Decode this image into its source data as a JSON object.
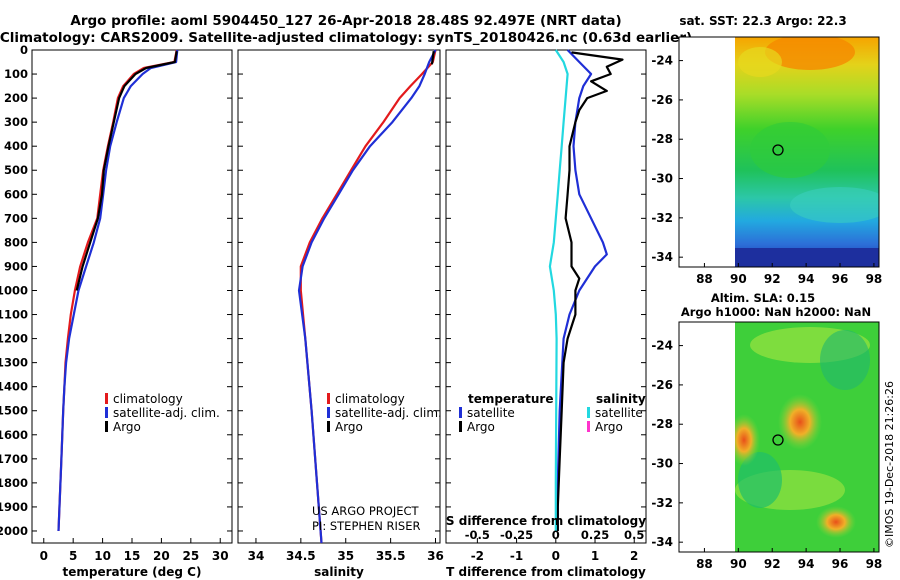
{
  "title": {
    "line1": "Argo profile: aoml 5904450_127 26-Apr-2018 28.48S 92.497E (NRT data)",
    "line2": "Climatology: CARS2009. Satellite-adjusted climatology: synTS_20180426.nc (0.63d earlier)"
  },
  "depth_ticks": [
    "0",
    "100",
    "200",
    "300",
    "400",
    "500",
    "600",
    "700",
    "800",
    "900",
    "1000",
    "1100",
    "1200",
    "1300",
    "1400",
    "1500",
    "1600",
    "1700",
    "1800",
    "1900",
    "2000"
  ],
  "colors": {
    "climatology": "#e31a1c",
    "satellite": "#1f2fd6",
    "argo": "#000000",
    "sal_satellite": "#22d8e0",
    "sal_argo": "#ff33cc"
  },
  "chart_data": [
    {
      "type": "line",
      "id": "temperature",
      "xlabel": "temperature (deg C)",
      "ylabel": "",
      "xlim": [
        -2,
        32
      ],
      "ylim": [
        2050,
        0
      ],
      "xticks": [
        0,
        5,
        10,
        15,
        20,
        25,
        30
      ],
      "legend": [
        "climatology",
        "satellite-adj. clim.",
        "Argo"
      ],
      "series": [
        {
          "name": "climatology",
          "color": "#e31a1c",
          "depth": [
            0,
            50,
            75,
            100,
            150,
            200,
            300,
            400,
            500,
            600,
            700,
            800,
            900,
            1000,
            1100,
            1200,
            1300,
            1400,
            1500,
            1700,
            2000
          ],
          "values": [
            22.6,
            22.2,
            17,
            15.3,
            13.5,
            12.6,
            11.8,
            10.9,
            10.1,
            9.6,
            9.1,
            7.5,
            6.2,
            5.3,
            4.6,
            4.1,
            3.7,
            3.5,
            3.3,
            3.0,
            2.5
          ]
        },
        {
          "name": "satellite-adj. clim.",
          "color": "#1f2fd6",
          "depth": [
            0,
            50,
            75,
            100,
            150,
            200,
            300,
            400,
            500,
            600,
            700,
            800,
            900,
            1000,
            1100,
            1200,
            1300,
            1400,
            1500,
            1700,
            2000
          ],
          "values": [
            22.7,
            22.5,
            18.2,
            16.8,
            14.8,
            13.6,
            12.4,
            11.3,
            10.6,
            10.1,
            9.6,
            8.5,
            7.2,
            5.9,
            5.1,
            4.3,
            3.8,
            3.5,
            3.3,
            3.0,
            2.5
          ]
        },
        {
          "name": "Argo",
          "color": "#000000",
          "depth": [
            5,
            50,
            75,
            100,
            150,
            200,
            300,
            400,
            500,
            600,
            700,
            800,
            900,
            1000
          ],
          "values": [
            22.6,
            22.3,
            17.4,
            15.6,
            13.7,
            12.8,
            11.9,
            11.0,
            10.2,
            9.9,
            9.2,
            7.9,
            6.6,
            5.6
          ]
        }
      ]
    },
    {
      "type": "line",
      "id": "salinity",
      "xlabel": "salinity",
      "xlim": [
        33.8,
        36.05
      ],
      "ylim": [
        2050,
        0
      ],
      "xticks": [
        34,
        34.5,
        35,
        35.5,
        36
      ],
      "xtick_labels": [
        "34",
        "34.5",
        "35",
        "35.5",
        "36"
      ],
      "legend": [
        "climatology",
        "satellite-adj. clim.",
        "Argo"
      ],
      "annotation": [
        "US ARGO PROJECT",
        "PI: STEPHEN RISER"
      ],
      "series": [
        {
          "name": "climatology",
          "color": "#e31a1c",
          "depth": [
            0,
            50,
            100,
            150,
            200,
            300,
            400,
            500,
            600,
            700,
            800,
            900,
            1000,
            1200,
            1500,
            1800,
            2000,
            2050
          ],
          "values": [
            36.0,
            35.97,
            35.85,
            35.72,
            35.6,
            35.42,
            35.22,
            35.06,
            34.9,
            34.74,
            34.6,
            34.5,
            34.5,
            34.55,
            34.62,
            34.68,
            34.72,
            34.73
          ]
        },
        {
          "name": "satellite-adj. clim.",
          "color": "#1f2fd6",
          "depth": [
            0,
            50,
            100,
            150,
            200,
            300,
            400,
            500,
            600,
            700,
            800,
            900,
            1000,
            1200,
            1500,
            1800,
            2000,
            2050
          ],
          "values": [
            36.0,
            35.93,
            35.88,
            35.82,
            35.73,
            35.52,
            35.27,
            35.08,
            34.92,
            34.76,
            34.62,
            34.52,
            34.48,
            34.55,
            34.62,
            34.68,
            34.72,
            34.73
          ]
        },
        {
          "name": "Argo",
          "color": "#000000",
          "depth": [
            5,
            60
          ],
          "values": [
            35.98,
            35.96
          ]
        }
      ]
    },
    {
      "type": "line",
      "id": "difference",
      "xlabel": "T difference from climatology",
      "top_label": "S difference from climatology",
      "xlim": [
        -2.8,
        2.3
      ],
      "ylim": [
        2050,
        0
      ],
      "xticks": [
        -2,
        -1,
        0,
        1,
        2
      ],
      "top_ticks": [
        "-0.5",
        "-0.25",
        "0",
        "0.25",
        "0.5"
      ],
      "legend_left_title": "temperature",
      "legend_left": [
        "satellite",
        "Argo"
      ],
      "legend_right_title": "salinity",
      "legend_right": [
        "satellite",
        "Argo"
      ],
      "series": [
        {
          "name": "temperature satellite",
          "color": "#1f2fd6",
          "depth": [
            0,
            50,
            100,
            150,
            200,
            300,
            400,
            500,
            600,
            700,
            800,
            850,
            900,
            1000,
            1100,
            1200,
            1500,
            1800,
            2000
          ],
          "values": [
            0.3,
            0.6,
            0.9,
            0.7,
            0.6,
            0.5,
            0.45,
            0.5,
            0.6,
            0.9,
            1.2,
            1.3,
            1.0,
            0.6,
            0.35,
            0.2,
            0.1,
            0.05,
            0.05
          ]
        },
        {
          "name": "temperature Argo",
          "color": "#000000",
          "depth": [
            10,
            40,
            70,
            100,
            130,
            170,
            200,
            250,
            300,
            400,
            500,
            600,
            700,
            800,
            900,
            950,
            1000,
            1100,
            1200,
            1300,
            1500,
            1700,
            1900,
            2000
          ],
          "values": [
            0.4,
            1.7,
            1.3,
            1.4,
            0.9,
            1.3,
            0.8,
            0.6,
            0.5,
            0.35,
            0.35,
            0.3,
            0.25,
            0.4,
            0.4,
            0.6,
            0.5,
            0.5,
            0.3,
            0.2,
            0.15,
            0.1,
            0.05,
            0.05
          ]
        },
        {
          "name": "salinity satellite",
          "color": "#22d8e0",
          "depth": [
            0,
            50,
            100,
            200,
            300,
            400,
            500,
            600,
            700,
            800,
            900,
            1000,
            1100,
            1200,
            1500,
            1800,
            2000
          ],
          "values": [
            0.0,
            0.2,
            0.3,
            0.25,
            0.2,
            0.15,
            0.1,
            0.05,
            0.0,
            -0.05,
            -0.15,
            -0.05,
            0.0,
            0.02,
            0.01,
            0.0,
            0.0
          ]
        }
      ]
    },
    {
      "type": "heatmap",
      "id": "sst_map",
      "title": "sat. SST: 22.3 Argo: 22.3",
      "xticks": [
        "88",
        "90",
        "92",
        "94",
        "96",
        "98"
      ],
      "yticks": [
        "-24",
        "-26",
        "-28",
        "-30",
        "-32",
        "-34"
      ],
      "xlim": [
        86.5,
        98.3
      ],
      "ylim": [
        -34.5,
        -22.8
      ],
      "float": [
        92.497,
        -28.48
      ]
    },
    {
      "type": "heatmap",
      "id": "sla_map",
      "title": [
        "Altim. SLA: 0.15",
        "Argo h1000: NaN h2000: NaN"
      ],
      "xticks": [
        "88",
        "90",
        "92",
        "94",
        "96",
        "98"
      ],
      "yticks": [
        "-24",
        "-26",
        "-28",
        "-30",
        "-32",
        "-34"
      ],
      "xlim": [
        86.5,
        98.3
      ],
      "ylim": [
        -34.5,
        -22.8
      ],
      "float": [
        92.497,
        -28.48
      ]
    }
  ],
  "credit": "©IMOS 19-Dec-2018 21:26:26"
}
